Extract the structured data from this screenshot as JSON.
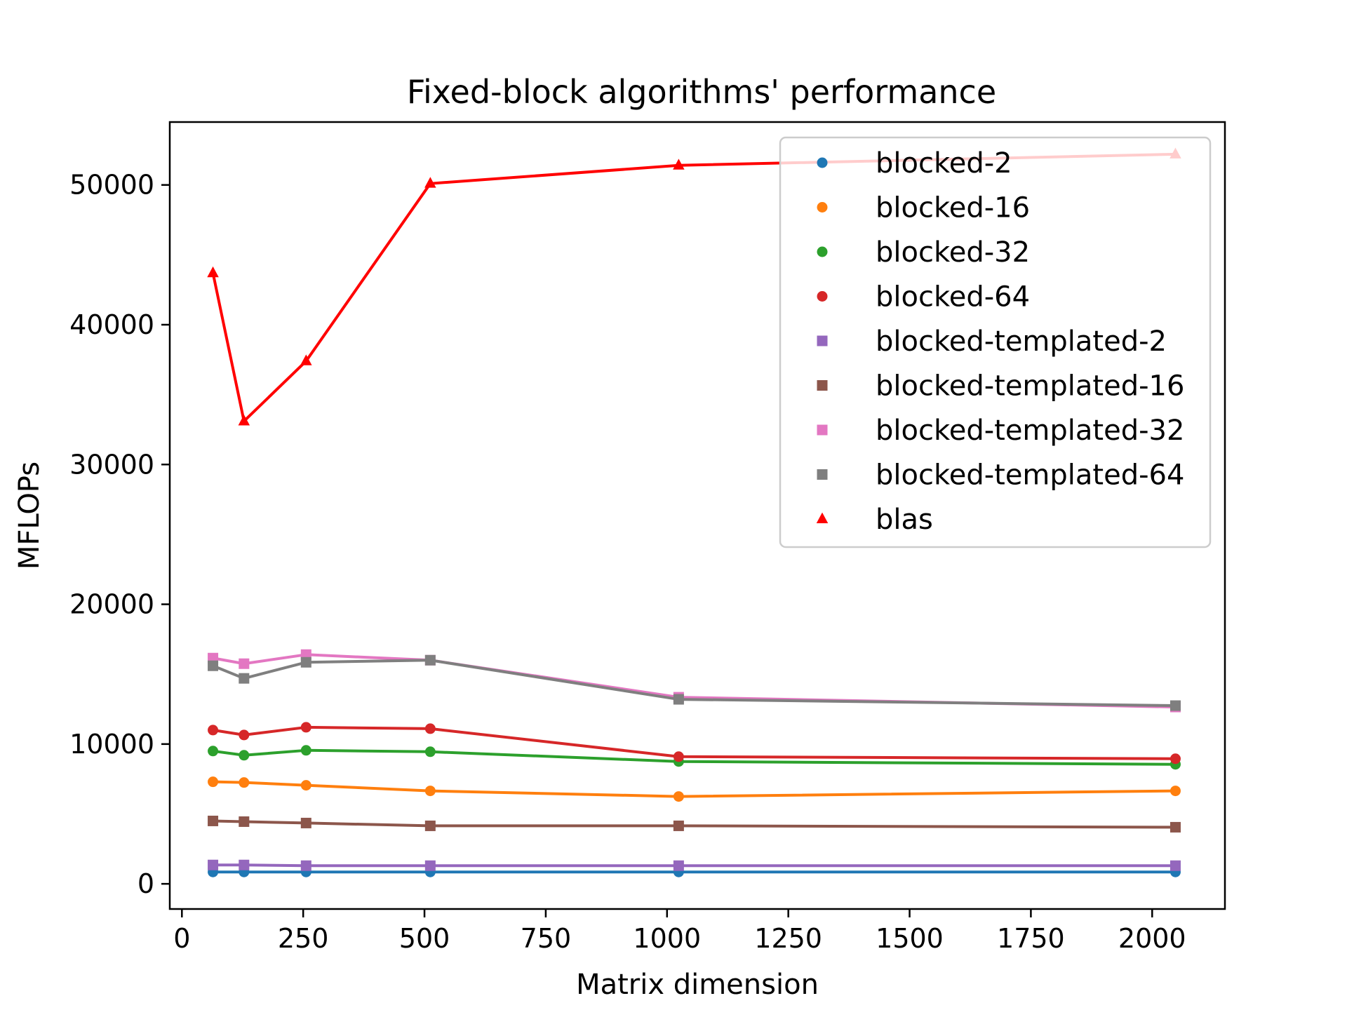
{
  "chart_data": {
    "type": "line",
    "title": "Fixed-block algorithms' performance",
    "xlabel": "Matrix dimension",
    "ylabel": "MFLOPs",
    "xlim": [
      -25,
      2150
    ],
    "ylim": [
      -1800,
      54500
    ],
    "xticks": [
      0,
      250,
      500,
      750,
      1000,
      1250,
      1500,
      1750,
      2000
    ],
    "xtick_labels": [
      "0",
      "250",
      "500",
      "750",
      "1000",
      "1250",
      "1500",
      "1750",
      "2000"
    ],
    "yticks": [
      0,
      10000,
      20000,
      30000,
      40000,
      50000
    ],
    "ytick_labels": [
      "0",
      "10000",
      "20000",
      "30000",
      "40000",
      "50000"
    ],
    "grid": false,
    "legend_position": "top-right",
    "x": [
      64,
      128,
      256,
      512,
      1024,
      2048
    ],
    "series": [
      {
        "name": "blocked-2",
        "color": "#1f77b4",
        "marker": "circle",
        "values": [
          850,
          850,
          850,
          850,
          850,
          850
        ]
      },
      {
        "name": "blocked-16",
        "color": "#ff7f0e",
        "marker": "circle",
        "values": [
          7300,
          7250,
          7050,
          6650,
          6250,
          6650
        ]
      },
      {
        "name": "blocked-32",
        "color": "#2ca02c",
        "marker": "circle",
        "values": [
          9500,
          9200,
          9550,
          9450,
          8750,
          8550
        ]
      },
      {
        "name": "blocked-64",
        "color": "#d62728",
        "marker": "circle",
        "values": [
          11000,
          10650,
          11200,
          11100,
          9100,
          8950
        ]
      },
      {
        "name": "blocked-templated-2",
        "color": "#9467bd",
        "marker": "square",
        "values": [
          1350,
          1350,
          1300,
          1300,
          1300,
          1300
        ]
      },
      {
        "name": "blocked-templated-16",
        "color": "#8c564b",
        "marker": "square",
        "values": [
          4500,
          4450,
          4350,
          4150,
          4150,
          4050
        ]
      },
      {
        "name": "blocked-templated-32",
        "color": "#e377c2",
        "marker": "square",
        "values": [
          16150,
          15750,
          16400,
          16000,
          13350,
          12650
        ]
      },
      {
        "name": "blocked-templated-64",
        "color": "#7f7f7f",
        "marker": "square",
        "values": [
          15600,
          14700,
          15850,
          16000,
          13200,
          12750
        ]
      },
      {
        "name": "blas",
        "color": "#ff0000",
        "marker": "triangle",
        "values": [
          43700,
          33100,
          37400,
          50100,
          51400,
          52200
        ]
      }
    ]
  }
}
